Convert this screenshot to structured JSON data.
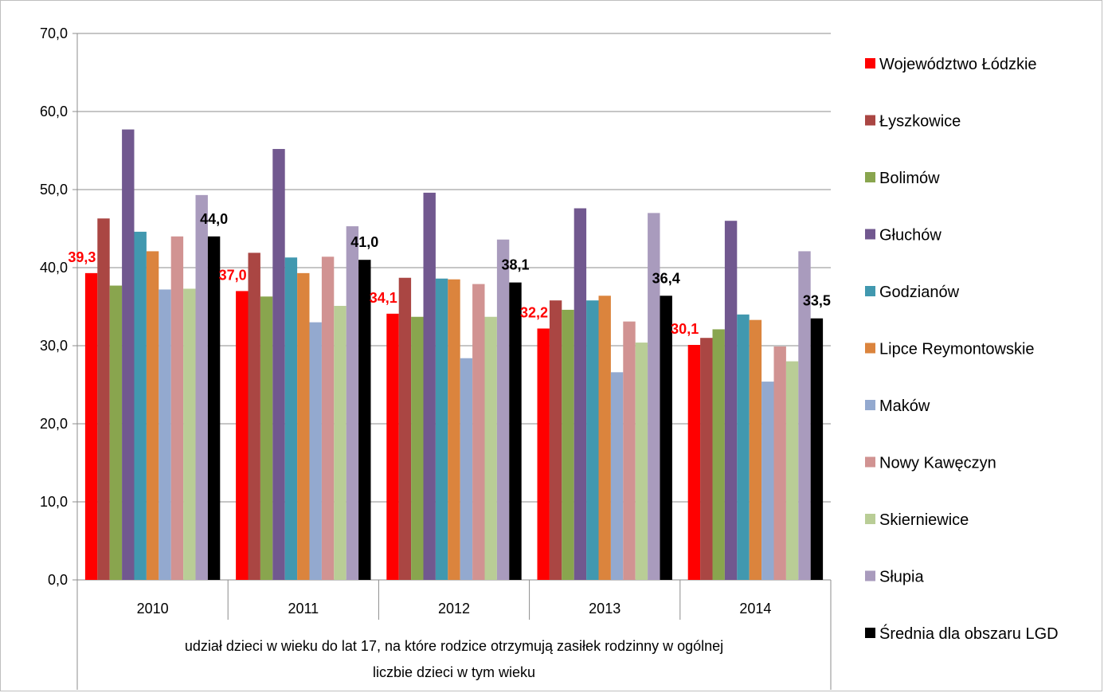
{
  "chart_data": {
    "type": "bar",
    "title": "",
    "xlabel": "",
    "ylabel": "",
    "categories": [
      "2010",
      "2011",
      "2012",
      "2013",
      "2014"
    ],
    "group_label": "udział dzieci w wieku do lat 17, na które rodzice otrzymują zasiłek rodzinny w ogólnej liczbie dzieci w tym wieku",
    "group_label_lines": [
      "udział dzieci w wieku do lat 17, na które rodzice otrzymują zasiłek rodzinny w ogólnej",
      "liczbie dzieci w tym wieku"
    ],
    "ylim": [
      0,
      70
    ],
    "yticks": [
      "0,0",
      "10,0",
      "20,0",
      "30,0",
      "40,0",
      "50,0",
      "60,0",
      "70,0"
    ],
    "grid": true,
    "legend_position": "right",
    "series": [
      {
        "name": "Województwo Łódzkie",
        "color": "#ff0000",
        "values": [
          39.3,
          37.0,
          34.1,
          32.2,
          30.1
        ],
        "labels": [
          "39,3",
          "37,0",
          "34,1",
          "32,2",
          "30,1"
        ],
        "label_color": "#ff0000"
      },
      {
        "name": "Łyszkowice",
        "color": "#aa4643",
        "values": [
          46.3,
          41.9,
          38.7,
          35.8,
          31.0
        ]
      },
      {
        "name": "Bolimów",
        "color": "#89a54e",
        "values": [
          37.7,
          36.3,
          33.7,
          34.6,
          32.1
        ]
      },
      {
        "name": "Głuchów",
        "color": "#71588f",
        "values": [
          57.7,
          55.2,
          49.6,
          47.6,
          46.0
        ]
      },
      {
        "name": "Godzianów",
        "color": "#4198af",
        "values": [
          44.6,
          41.3,
          38.6,
          35.8,
          34.0
        ]
      },
      {
        "name": "Lipce Reymontowskie",
        "color": "#db843d",
        "values": [
          42.1,
          39.3,
          38.5,
          36.4,
          33.3
        ]
      },
      {
        "name": "Maków",
        "color": "#93a9cf",
        "values": [
          37.2,
          33.0,
          28.4,
          26.6,
          25.4
        ]
      },
      {
        "name": "Nowy Kawęczyn",
        "color": "#d19392",
        "values": [
          44.0,
          41.4,
          37.9,
          33.1,
          29.9
        ]
      },
      {
        "name": "Skierniewice",
        "color": "#b9cd96",
        "values": [
          37.3,
          35.1,
          33.7,
          30.4,
          28.0
        ]
      },
      {
        "name": "Słupia",
        "color": "#a99bbd",
        "values": [
          49.3,
          45.3,
          43.6,
          47.0,
          42.1
        ]
      },
      {
        "name": "Średnia dla obszaru LGD",
        "color": "#000000",
        "values": [
          44.0,
          41.0,
          38.1,
          36.4,
          33.5
        ],
        "labels": [
          "44,0",
          "41,0",
          "38,1",
          "36,4",
          "33,5"
        ],
        "label_color": "#000000"
      }
    ]
  }
}
